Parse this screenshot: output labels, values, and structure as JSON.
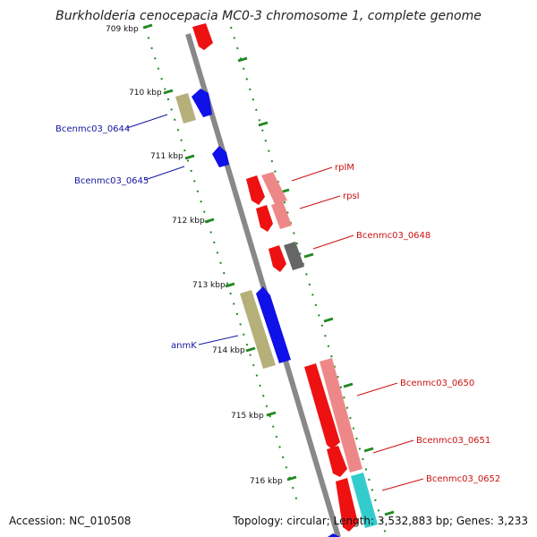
{
  "title": "Burkholderia cenocepacia MC0-3 chromosome 1, complete genome",
  "footer": {
    "accession": "Accession: NC_010508",
    "summary": "Topology: circular; Length: 3,532,883 bp; Genes: 3,233"
  },
  "colors": {
    "backbone": "#888888",
    "tick": "#228822",
    "forward_gene": "#1010e8",
    "forward_olive": "#b5b07a",
    "reverse_gene": "#ee1111",
    "reverse_pink": "#ee8888",
    "reverse_gray": "#666666",
    "reverse_cyan": "#33cccc",
    "forward_label": "#1515a0",
    "reverse_label": "#cc1111"
  },
  "kbp_ticks": [
    "709 kbp",
    "710 kbp",
    "711 kbp",
    "712 kbp",
    "713 kbp",
    "714 kbp",
    "715 kbp",
    "716 kbp"
  ],
  "forward_labels": [
    "Bcenmc03_0644",
    "Bcenmc03_0645",
    "anmK"
  ],
  "reverse_labels": [
    "rplM",
    "rpsI",
    "Bcenmc03_0648",
    "Bcenmc03_0650",
    "Bcenmc03_0651",
    "Bcenmc03_0652"
  ]
}
